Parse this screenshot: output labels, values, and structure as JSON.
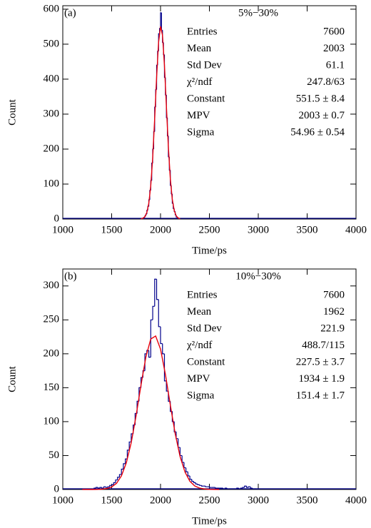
{
  "chart_data": [
    {
      "type": "histogram",
      "panel_label": "(a)",
      "xlabel": "Time/ps",
      "ylabel": "Count",
      "color": "#00008b",
      "bins": [
        1820,
        1830,
        1840,
        1850,
        1860,
        1870,
        1880,
        1890,
        1900,
        1910,
        1920,
        1930,
        1940,
        1950,
        1960,
        1970,
        1980,
        1990,
        2000,
        2010,
        2020,
        2030,
        2040,
        2050,
        2060,
        2070,
        2080,
        2090,
        2100,
        2110,
        2120,
        2130,
        2140,
        2150,
        2160,
        2170,
        2180
      ],
      "counts": [
        3,
        5,
        9,
        14,
        25,
        36,
        55,
        82,
        110,
        160,
        200,
        250,
        320,
        370,
        440,
        480,
        530,
        545,
        590,
        540,
        505,
        470,
        405,
        355,
        290,
        238,
        178,
        140,
        96,
        72,
        45,
        30,
        22,
        12,
        6,
        4
      ],
      "xlim": [
        1000,
        4000
      ],
      "xticks": [
        1000,
        1500,
        2000,
        2500,
        3000,
        3500,
        4000
      ],
      "ylim": [
        0,
        610
      ],
      "yticks": [
        0,
        100,
        200,
        300,
        400,
        500,
        600
      ],
      "fit": {
        "color": "#e8000b",
        "x": [
          1800,
          1820,
          1840,
          1860,
          1880,
          1900,
          1920,
          1940,
          1960,
          1980,
          2000,
          2020,
          2040,
          2060,
          2080,
          2100,
          2120,
          2140,
          2160,
          2180,
          2200
        ],
        "values": [
          0.6,
          2.2,
          6.8,
          18.7,
          45,
          95,
          176,
          286,
          406,
          505,
          551,
          526,
          440,
          322,
          207,
          116,
          57,
          24.7,
          9.3,
          3.1,
          0.9
        ]
      },
      "stats": {
        "title": "5%−30%",
        "rows": [
          [
            "Entries",
            "7600"
          ],
          [
            "Mean",
            "2003"
          ],
          [
            "Std Dev",
            "61.1"
          ],
          [
            "χ²/ndf",
            "247.8/63"
          ],
          [
            "Constant",
            "551.5 ± 8.4"
          ],
          [
            "MPV",
            "2003 ± 0.7"
          ],
          [
            "Sigma",
            "54.96 ± 0.54"
          ]
        ]
      }
    },
    {
      "type": "histogram",
      "panel_label": "(b)",
      "xlabel": "Time/ps",
      "ylabel": "Count",
      "color": "#00008b",
      "bins": [
        1300,
        1320,
        1340,
        1360,
        1380,
        1400,
        1420,
        1440,
        1460,
        1480,
        1500,
        1520,
        1540,
        1560,
        1580,
        1600,
        1620,
        1640,
        1660,
        1680,
        1700,
        1720,
        1740,
        1760,
        1780,
        1800,
        1820,
        1840,
        1860,
        1880,
        1900,
        1920,
        1940,
        1960,
        1980,
        2000,
        2020,
        2040,
        2060,
        2080,
        2100,
        2120,
        2140,
        2160,
        2180,
        2200,
        2220,
        2240,
        2260,
        2280,
        2300,
        2320,
        2340,
        2360,
        2380,
        2400,
        2420,
        2440,
        2460,
        2480,
        2500,
        2520,
        2540,
        2560,
        2580,
        2600,
        2620,
        2640,
        2660,
        2680,
        2700,
        2720,
        2740,
        2760,
        2780,
        2800,
        2820,
        2840,
        2860,
        2880,
        2900,
        2920,
        2940,
        2960,
        2980,
        3000
      ],
      "counts": [
        1,
        2,
        3,
        2,
        3,
        2,
        4,
        3,
        4,
        6,
        7,
        10,
        14,
        18,
        22,
        30,
        38,
        45,
        58,
        70,
        82,
        95,
        112,
        130,
        150,
        165,
        175,
        200,
        205,
        195,
        250,
        270,
        310,
        280,
        240,
        215,
        200,
        160,
        145,
        130,
        115,
        100,
        85,
        75,
        62,
        50,
        40,
        32,
        26,
        20,
        15,
        12,
        10,
        8,
        7,
        6,
        5,
        5,
        4,
        4,
        3,
        3,
        3,
        2,
        2,
        2,
        2,
        1,
        2,
        1,
        1,
        1,
        1,
        1,
        2,
        1,
        2,
        3,
        5,
        3,
        4,
        2,
        1,
        1,
        1
      ],
      "xlim": [
        1000,
        4000
      ],
      "xticks": [
        1000,
        1500,
        2000,
        2500,
        3000,
        3500,
        4000
      ],
      "ylim": [
        0,
        325
      ],
      "yticks": [
        0,
        50,
        100,
        150,
        200,
        250,
        300
      ],
      "fit": {
        "color": "#e8000b",
        "x": [
          1200,
          1250,
          1300,
          1350,
          1400,
          1450,
          1500,
          1550,
          1600,
          1650,
          1700,
          1750,
          1800,
          1850,
          1900,
          1950,
          2000,
          2050,
          2100,
          2150,
          2200,
          2250,
          2300,
          2350,
          2400,
          2450,
          2500,
          2550,
          2600
        ],
        "values": [
          0,
          0,
          0,
          0.1,
          0.5,
          1.4,
          3.7,
          9.1,
          20,
          39.3,
          68.9,
          108.6,
          153.8,
          195.1,
          221.8,
          226.2,
          206.9,
          169.6,
          124.7,
          82.2,
          48.6,
          25.8,
          12.2,
          5.2,
          2,
          0.7,
          0.2,
          0.1,
          0
        ]
      },
      "stats": {
        "title": "10%−30%",
        "rows": [
          [
            "Entries",
            "7600"
          ],
          [
            "Mean",
            "1962"
          ],
          [
            "Std Dev",
            "221.9"
          ],
          [
            "χ²/ndf",
            "488.7/115"
          ],
          [
            "Constant",
            "227.5 ± 3.7"
          ],
          [
            "MPV",
            "1934 ± 1.9"
          ],
          [
            "Sigma",
            "151.4 ± 1.7"
          ]
        ]
      }
    }
  ]
}
